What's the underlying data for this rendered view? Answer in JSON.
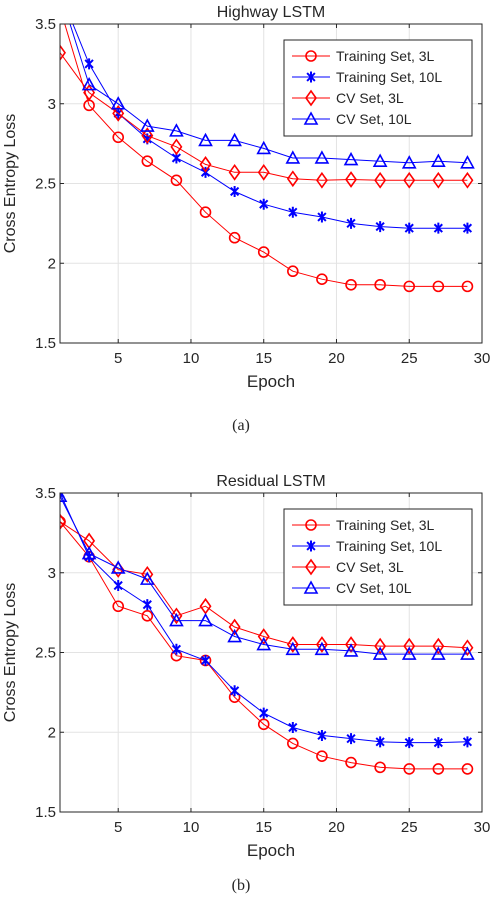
{
  "chart_data": [
    {
      "type": "line",
      "title": "Highway LSTM",
      "xlabel": "Epoch",
      "ylabel": "Cross Entropy Loss",
      "xlim": [
        1,
        30
      ],
      "ylim": [
        1.5,
        3.5
      ],
      "xticks": [
        5,
        10,
        15,
        20,
        25,
        30
      ],
      "yticks": [
        1.5,
        2,
        2.5,
        3,
        3.5
      ],
      "grid": true,
      "legend_position": "top-right",
      "caption": "(a)",
      "series": [
        {
          "name": "Training Set, 3L",
          "color": "#ff0000",
          "marker": "circle",
          "x": [
            1,
            3,
            5,
            7,
            9,
            11,
            13,
            15,
            17,
            19,
            21,
            23,
            25,
            27,
            29
          ],
          "y": [
            3.6,
            2.99,
            2.79,
            2.64,
            2.52,
            2.32,
            2.16,
            2.07,
            1.95,
            1.9,
            1.865,
            1.865,
            1.855,
            1.855,
            1.855
          ]
        },
        {
          "name": "Training Set, 10L",
          "color": "#0000ff",
          "marker": "asterisk",
          "x": [
            1,
            3,
            5,
            7,
            9,
            11,
            13,
            15,
            17,
            19,
            21,
            23,
            25,
            27,
            29
          ],
          "y": [
            3.7,
            3.25,
            2.94,
            2.78,
            2.66,
            2.57,
            2.45,
            2.37,
            2.32,
            2.29,
            2.25,
            2.23,
            2.22,
            2.22,
            2.22
          ]
        },
        {
          "name": "CV Set, 3L",
          "color": "#ff0000",
          "marker": "diamond",
          "x": [
            1,
            3,
            5,
            7,
            9,
            11,
            13,
            15,
            17,
            19,
            21,
            23,
            25,
            27,
            29
          ],
          "y": [
            3.32,
            3.07,
            2.94,
            2.8,
            2.73,
            2.62,
            2.57,
            2.57,
            2.53,
            2.52,
            2.525,
            2.52,
            2.52,
            2.52,
            2.52
          ]
        },
        {
          "name": "CV Set, 10L",
          "color": "#0000ff",
          "marker": "triangle",
          "x": [
            1,
            3,
            5,
            7,
            9,
            11,
            13,
            15,
            17,
            19,
            21,
            23,
            25,
            27,
            29
          ],
          "y": [
            3.7,
            3.12,
            3.0,
            2.86,
            2.83,
            2.77,
            2.77,
            2.72,
            2.66,
            2.66,
            2.65,
            2.64,
            2.63,
            2.64,
            2.63
          ]
        }
      ]
    },
    {
      "type": "line",
      "title": "Residual LSTM",
      "xlabel": "Epoch",
      "ylabel": "Cross Entropy Loss",
      "xlim": [
        1,
        30
      ],
      "ylim": [
        1.5,
        3.5
      ],
      "xticks": [
        5,
        10,
        15,
        20,
        25,
        30
      ],
      "yticks": [
        1.5,
        2,
        2.5,
        3,
        3.5
      ],
      "grid": true,
      "legend_position": "top-right",
      "caption": "(b)",
      "series": [
        {
          "name": "Training Set, 3L",
          "color": "#ff0000",
          "marker": "circle",
          "x": [
            1,
            3,
            5,
            7,
            9,
            11,
            13,
            15,
            17,
            19,
            21,
            23,
            25,
            27,
            29
          ],
          "y": [
            3.32,
            3.1,
            2.79,
            2.73,
            2.48,
            2.45,
            2.22,
            2.05,
            1.93,
            1.85,
            1.81,
            1.78,
            1.77,
            1.77,
            1.77
          ]
        },
        {
          "name": "Training Set, 10L",
          "color": "#0000ff",
          "marker": "asterisk",
          "x": [
            1,
            3,
            5,
            7,
            9,
            11,
            13,
            15,
            17,
            19,
            21,
            23,
            25,
            27,
            29
          ],
          "y": [
            3.5,
            3.1,
            2.92,
            2.8,
            2.52,
            2.45,
            2.26,
            2.12,
            2.03,
            1.98,
            1.96,
            1.94,
            1.935,
            1.935,
            1.94
          ]
        },
        {
          "name": "CV Set, 3L",
          "color": "#ff0000",
          "marker": "diamond",
          "x": [
            1,
            3,
            5,
            7,
            9,
            11,
            13,
            15,
            17,
            19,
            21,
            23,
            25,
            27,
            29
          ],
          "y": [
            3.32,
            3.2,
            3.02,
            2.99,
            2.73,
            2.79,
            2.66,
            2.6,
            2.55,
            2.55,
            2.55,
            2.54,
            2.54,
            2.54,
            2.53
          ]
        },
        {
          "name": "CV Set, 10L",
          "color": "#0000ff",
          "marker": "triangle",
          "x": [
            1,
            3,
            5,
            7,
            9,
            11,
            13,
            15,
            17,
            19,
            21,
            23,
            25,
            27,
            29
          ],
          "y": [
            3.48,
            3.12,
            3.03,
            2.96,
            2.7,
            2.7,
            2.6,
            2.55,
            2.52,
            2.52,
            2.51,
            2.49,
            2.49,
            2.49,
            2.49
          ]
        }
      ]
    }
  ]
}
